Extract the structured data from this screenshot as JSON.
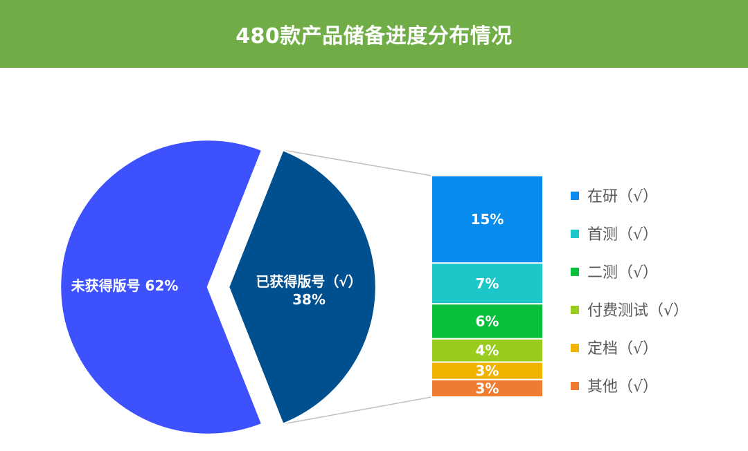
{
  "header": {
    "title": "480款产品储备进度分布情况"
  },
  "chart_data": {
    "type": "pie-of-bar",
    "pie": {
      "slices": [
        {
          "name": "未获得版号",
          "value": 62,
          "label": "未获得版号 62%",
          "color": "#3d51ff"
        },
        {
          "name": "已获得版号（√）",
          "value": 38,
          "label_line1": "已获得版号（√）",
          "label_line2": "38%",
          "color": "#00508f"
        }
      ]
    },
    "bar": {
      "segments": [
        {
          "name": "在研（√）",
          "value": 15,
          "label": "15%",
          "color": "#078ced"
        },
        {
          "name": "首测（√）",
          "value": 7,
          "label": "7%",
          "color": "#1cc7c9"
        },
        {
          "name": "二测（√）",
          "value": 6,
          "label": "6%",
          "color": "#0abf3b"
        },
        {
          "name": "付费测试（√）",
          "value": 4,
          "label": "4%",
          "color": "#99cc1e"
        },
        {
          "name": "定档（√）",
          "value": 3,
          "label": "3%",
          "color": "#f2b200"
        },
        {
          "name": "其他（√）",
          "value": 3,
          "label": "3%",
          "color": "#ee7c31"
        }
      ]
    }
  }
}
